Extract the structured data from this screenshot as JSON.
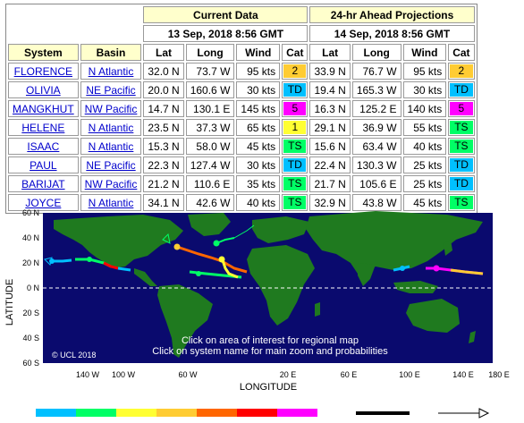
{
  "table": {
    "current_header": "Current Data",
    "projection_header": "24-hr Ahead Projections",
    "current_time": "13 Sep, 2018 8:56 GMT",
    "projection_time": "14 Sep, 2018 8:56 GMT",
    "col_system": "System",
    "col_basin": "Basin",
    "col_lat": "Lat",
    "col_long": "Long",
    "col_wind": "Wind",
    "col_cat": "Cat",
    "rows": [
      {
        "system": "FLORENCE",
        "basin": "N Atlantic",
        "lat": "32.0 N",
        "long": "73.7 W",
        "wind": "95 kts",
        "cat": "2",
        "cat_color": "#ffcc33",
        "p_lat": "33.9 N",
        "p_long": "76.7 W",
        "p_wind": "95 kts",
        "p_cat": "2",
        "p_cat_color": "#ffcc33"
      },
      {
        "system": "OLIVIA",
        "basin": "NE Pacific",
        "lat": "20.0 N",
        "long": "160.6 W",
        "wind": "30 kts",
        "cat": "TD",
        "cat_color": "#00c0ff",
        "p_lat": "19.4 N",
        "p_long": "165.3 W",
        "p_wind": "30 kts",
        "p_cat": "TD",
        "p_cat_color": "#00c0ff"
      },
      {
        "system": "MANGKHUT",
        "basin": "NW Pacific",
        "lat": "14.7 N",
        "long": "130.1 E",
        "wind": "145 kts",
        "cat": "5",
        "cat_color": "#ff00ff",
        "p_lat": "16.3 N",
        "p_long": "125.2 E",
        "p_wind": "140 kts",
        "p_cat": "5",
        "p_cat_color": "#ff00ff"
      },
      {
        "system": "HELENE",
        "basin": "N Atlantic",
        "lat": "23.5 N",
        "long": "37.3 W",
        "wind": "65 kts",
        "cat": "1",
        "cat_color": "#ffff33",
        "p_lat": "29.1 N",
        "p_long": "36.9 W",
        "p_wind": "55 kts",
        "p_cat": "TS",
        "p_cat_color": "#00ff66"
      },
      {
        "system": "ISAAC",
        "basin": "N Atlantic",
        "lat": "15.3 N",
        "long": "58.0 W",
        "wind": "45 kts",
        "cat": "TS",
        "cat_color": "#00ff66",
        "p_lat": "15.6 N",
        "p_long": "63.4 W",
        "p_wind": "40 kts",
        "p_cat": "TS",
        "p_cat_color": "#00ff66"
      },
      {
        "system": "PAUL",
        "basin": "NE Pacific",
        "lat": "22.3 N",
        "long": "127.4 W",
        "wind": "30 kts",
        "cat": "TD",
        "cat_color": "#00c0ff",
        "p_lat": "22.4 N",
        "p_long": "130.3 W",
        "p_wind": "25 kts",
        "p_cat": "TD",
        "p_cat_color": "#00c0ff"
      },
      {
        "system": "BARIJAT",
        "basin": "NW Pacific",
        "lat": "21.2 N",
        "long": "110.6 E",
        "wind": "35 kts",
        "cat": "TS",
        "cat_color": "#00ff66",
        "p_lat": "21.7 N",
        "p_long": "105.6 E",
        "p_wind": "25 kts",
        "p_cat": "TD",
        "p_cat_color": "#00c0ff"
      },
      {
        "system": "JOYCE",
        "basin": "N Atlantic",
        "lat": "34.1 N",
        "long": "42.6 W",
        "wind": "40 kts",
        "cat": "TS",
        "cat_color": "#00ff66",
        "p_lat": "32.9 N",
        "p_long": "43.8 W",
        "p_wind": "45 kts",
        "p_cat": "TS",
        "p_cat_color": "#00ff66"
      }
    ]
  },
  "map": {
    "ocean_color": "#0a0a6e",
    "land_color": "#1f7a1f",
    "lat_ticks": [
      "60 N",
      "40 N",
      "20 N",
      "0 N",
      "20 S",
      "40 S",
      "60 S"
    ],
    "lon_ticks": [
      "140 W",
      "100 W",
      "60 W",
      "20 E",
      "60 E",
      "100 E",
      "140 E",
      "180 E"
    ],
    "lon_ticks_actual": [
      "140 W",
      "100 W",
      "60 W",
      "20 E",
      "60 E",
      "100 E",
      "140 E",
      "180 E"
    ],
    "lat_title": "LATITUDE",
    "lon_title": "LONGITUDE",
    "copyright": "© UCL 2018",
    "instruction_1": "Click on area of interest for regional map",
    "instruction_2": "Click on system name for main zoom and probabilities",
    "legend_colors": [
      "#00c0ff",
      "#00ff66",
      "#ffff33",
      "#ffcc33",
      "#ff6600",
      "#ff0000",
      "#ff00ff"
    ]
  }
}
